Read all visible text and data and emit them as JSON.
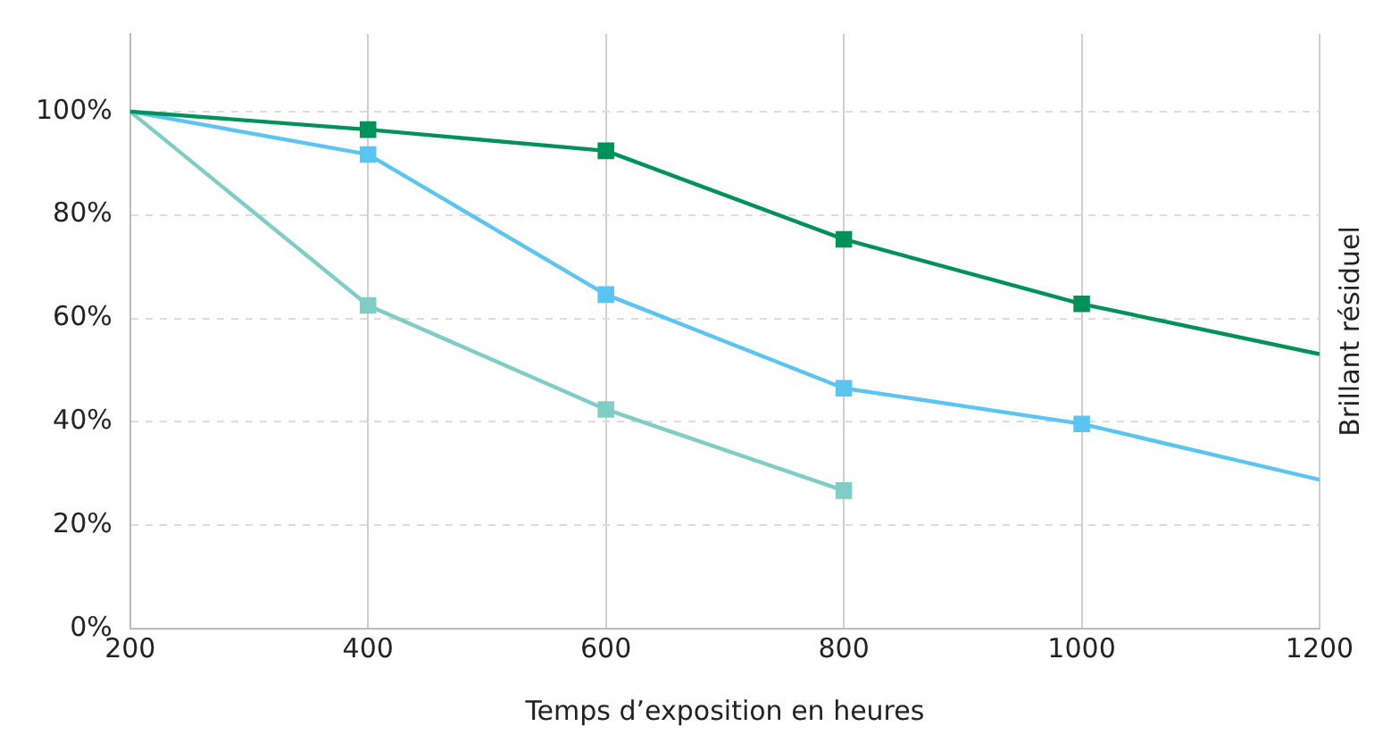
{
  "chart_data": {
    "type": "line",
    "xlabel": "Temps d’exposition en heures",
    "ylabel": "Brillant résiduel",
    "x": [
      200,
      400,
      600,
      800,
      1000,
      1200
    ],
    "series": [
      {
        "color": "#00915a",
        "values": [
          100,
          96.5,
          92.4,
          75.3,
          62.8,
          53.1
        ]
      },
      {
        "color": "#5bc4f1",
        "values": [
          100,
          91.7,
          64.6,
          46.5,
          39.6,
          28.8
        ]
      },
      {
        "color": "#7fcdc5",
        "values": [
          100,
          62.5,
          42.4,
          26.7,
          null,
          null
        ]
      }
    ],
    "xlim": [
      200,
      1200
    ],
    "xticks": [
      200,
      400,
      600,
      800,
      1000,
      1200
    ],
    "ylim": [
      0,
      115
    ],
    "yticks": [
      {
        "value": 0,
        "label": "0%"
      },
      {
        "value": 20,
        "label": "20%"
      },
      {
        "value": 40,
        "label": "40%"
      },
      {
        "value": 60,
        "label": "60%"
      },
      {
        "value": 80,
        "label": "80%"
      },
      {
        "value": 100,
        "label": "100%"
      }
    ],
    "grid": true,
    "legend": false,
    "marker": "square",
    "line_style": "solid"
  }
}
